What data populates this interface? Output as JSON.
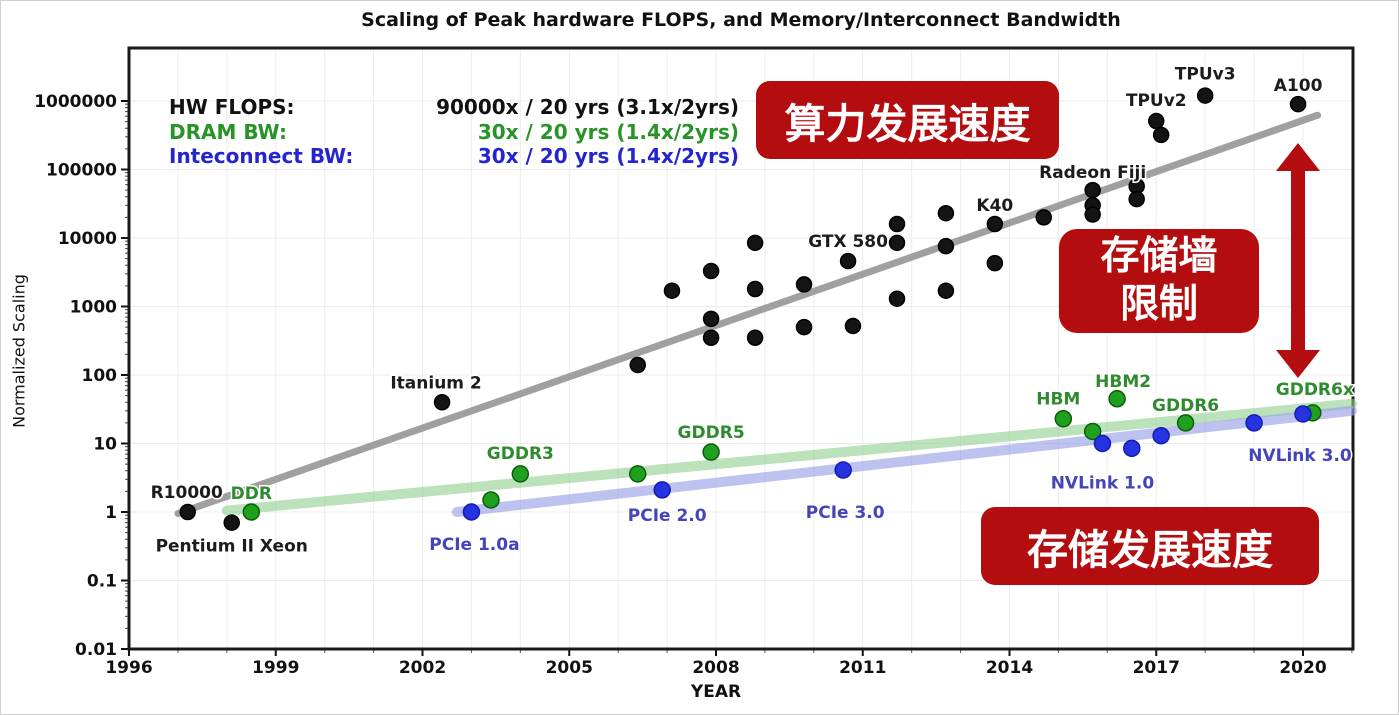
{
  "title": "Scaling of Peak hardware FLOPS, and Memory/Interconnect Bandwidth",
  "legend": [
    {
      "name": "HW FLOPS:",
      "stats": "90000x / 20 yrs (3.1x/2yrs)",
      "color": "#111111"
    },
    {
      "name": "DRAM BW:",
      "stats": "30x / 20 yrs (1.4x/2yrs)",
      "color": "#289428"
    },
    {
      "name": "Inteconnect BW:",
      "stats": "30x / 20 yrs (1.4x/2yrs)",
      "color": "#2525d0"
    }
  ],
  "annotations": {
    "compute_speed": "算力发展速度",
    "memory_wall": "存储墙\n限制",
    "storage_speed": "存储发展速度",
    "accent_red": "#b30d10"
  },
  "chart_data": {
    "type": "scatter",
    "title": "Scaling of Peak hardware FLOPS, and Memory/Interconnect Bandwidth",
    "xlabel": "YEAR",
    "ylabel": "Normalized Scaling",
    "xlim": [
      1996,
      2021
    ],
    "ylim": [
      0.01,
      1000000
    ],
    "log_y": true,
    "grid": true,
    "x_ticks": [
      1996,
      1999,
      2002,
      2005,
      2008,
      2011,
      2014,
      2017,
      2020
    ],
    "y_tick_labels": [
      "1000000",
      "100000",
      "10000",
      "1000",
      "100",
      "10",
      "1",
      "0.1",
      "0.01"
    ],
    "series": [
      {
        "name": "HW FLOPS",
        "dot_fill": "#141414",
        "dot_stroke": "#000000",
        "dot_r": 7.5,
        "label_color": "#1c1c1c",
        "trend": {
          "x1": 1997.0,
          "v1": 0.95,
          "x2": 2020.3,
          "v2": 620000,
          "color": "#9b9b9b",
          "width": 7,
          "opacity": 0.95
        },
        "points": [
          {
            "year": 1997.2,
            "value": 1.0,
            "label": "R10000",
            "dx": -1,
            "dy": -14
          },
          {
            "year": 1998.1,
            "value": 0.7,
            "label": "Pentium II Xeon",
            "dx": 0,
            "dy": 29
          },
          {
            "year": 2002.4,
            "value": 40,
            "label": "Itanium 2",
            "dx": -6,
            "dy": -14
          },
          {
            "year": 2006.4,
            "value": 140
          },
          {
            "year": 2007.1,
            "value": 1700
          },
          {
            "year": 2007.9,
            "value": 3300
          },
          {
            "year": 2007.9,
            "value": 660
          },
          {
            "year": 2007.9,
            "value": 350
          },
          {
            "year": 2008.8,
            "value": 8500
          },
          {
            "year": 2008.8,
            "value": 1800
          },
          {
            "year": 2008.8,
            "value": 350
          },
          {
            "year": 2009.8,
            "value": 2100
          },
          {
            "year": 2009.8,
            "value": 500
          },
          {
            "year": 2010.7,
            "value": 4600,
            "label": "GTX 580",
            "dx": 0,
            "dy": -14
          },
          {
            "year": 2010.8,
            "value": 520
          },
          {
            "year": 2011.7,
            "value": 16000
          },
          {
            "year": 2011.7,
            "value": 8500
          },
          {
            "year": 2011.7,
            "value": 1300
          },
          {
            "year": 2012.7,
            "value": 23000
          },
          {
            "year": 2012.7,
            "value": 7600
          },
          {
            "year": 2012.7,
            "value": 1700
          },
          {
            "year": 2013.7,
            "value": 16000,
            "label": "K40",
            "dx": 0,
            "dy": -13
          },
          {
            "year": 2013.7,
            "value": 4300
          },
          {
            "year": 2014.7,
            "value": 20000
          },
          {
            "year": 2015.7,
            "value": 50000,
            "label": "Radeon Fiji",
            "dx": 0,
            "dy": -12
          },
          {
            "year": 2015.7,
            "value": 30000
          },
          {
            "year": 2015.7,
            "value": 22000
          },
          {
            "year": 2016.6,
            "value": 57000
          },
          {
            "year": 2016.6,
            "value": 37000
          },
          {
            "year": 2017.0,
            "value": 510000,
            "label": "TPUv2",
            "dx": 0,
            "dy": -15
          },
          {
            "year": 2017.1,
            "value": 320000
          },
          {
            "year": 2018.0,
            "value": 1200000,
            "label": "TPUv3",
            "dx": 0,
            "dy": -16
          },
          {
            "year": 2019.9,
            "value": 900000,
            "label": "A100",
            "dx": 0,
            "dy": -13
          }
        ]
      },
      {
        "name": "DRAM BW",
        "dot_fill": "#1fa01f",
        "dot_stroke": "#0c5c0c",
        "dot_r": 8,
        "label_color": "#2e8b2e",
        "trend": {
          "x1": 1998.0,
          "v1": 1.05,
          "x2": 2021.0,
          "v2": 38,
          "color": "#8fd08f",
          "width": 10,
          "opacity": 0.6
        },
        "points": [
          {
            "year": 1998.5,
            "value": 1.0,
            "label": "DDR",
            "dx": 0,
            "dy": -13
          },
          {
            "year": 2003.4,
            "value": 1.5
          },
          {
            "year": 2004.0,
            "value": 3.6,
            "label": "GDDR3",
            "dx": 0,
            "dy": -15
          },
          {
            "year": 2006.4,
            "value": 3.6
          },
          {
            "year": 2007.9,
            "value": 7.5,
            "label": "GDDR5",
            "dx": 0,
            "dy": -14
          },
          {
            "year": 2015.1,
            "value": 23,
            "label": "HBM",
            "dx": -5,
            "dy": -14
          },
          {
            "year": 2015.7,
            "value": 15
          },
          {
            "year": 2016.2,
            "value": 45,
            "label": "HBM2",
            "dx": 6,
            "dy": -12
          },
          {
            "year": 2017.6,
            "value": 20,
            "label": "GDDR6",
            "dx": 0,
            "dy": -12
          },
          {
            "year": 2020.2,
            "value": 28,
            "label": "GDDR6x",
            "dx": 2,
            "dy": -18
          }
        ]
      },
      {
        "name": "Interconnect BW",
        "dot_fill": "#2633e0",
        "dot_stroke": "#141bb0",
        "dot_r": 8,
        "label_color": "#4444bb",
        "trend": {
          "x1": 2002.7,
          "v1": 1.0,
          "x2": 2021.0,
          "v2": 30,
          "color": "#9aa3e8",
          "width": 10,
          "opacity": 0.65
        },
        "points": [
          {
            "year": 2003.0,
            "value": 1.0,
            "label": "PCIe 1.0a",
            "dx": 3,
            "dy": 38
          },
          {
            "year": 2006.9,
            "value": 2.1,
            "label": "PCIe 2.0",
            "dx": 5,
            "dy": 31
          },
          {
            "year": 2010.6,
            "value": 4.1,
            "label": "PCIe 3.0",
            "dx": 2,
            "dy": 48
          },
          {
            "year": 2015.9,
            "value": 10,
            "label": "NVLink 1.0",
            "dx": 0,
            "dy": 45
          },
          {
            "year": 2016.5,
            "value": 8.5
          },
          {
            "year": 2017.1,
            "value": 13
          },
          {
            "year": 2019.0,
            "value": 20
          },
          {
            "year": 2020.0,
            "value": 27,
            "label": "NVLink 3.0",
            "dx": -3,
            "dy": 47
          }
        ]
      }
    ]
  }
}
